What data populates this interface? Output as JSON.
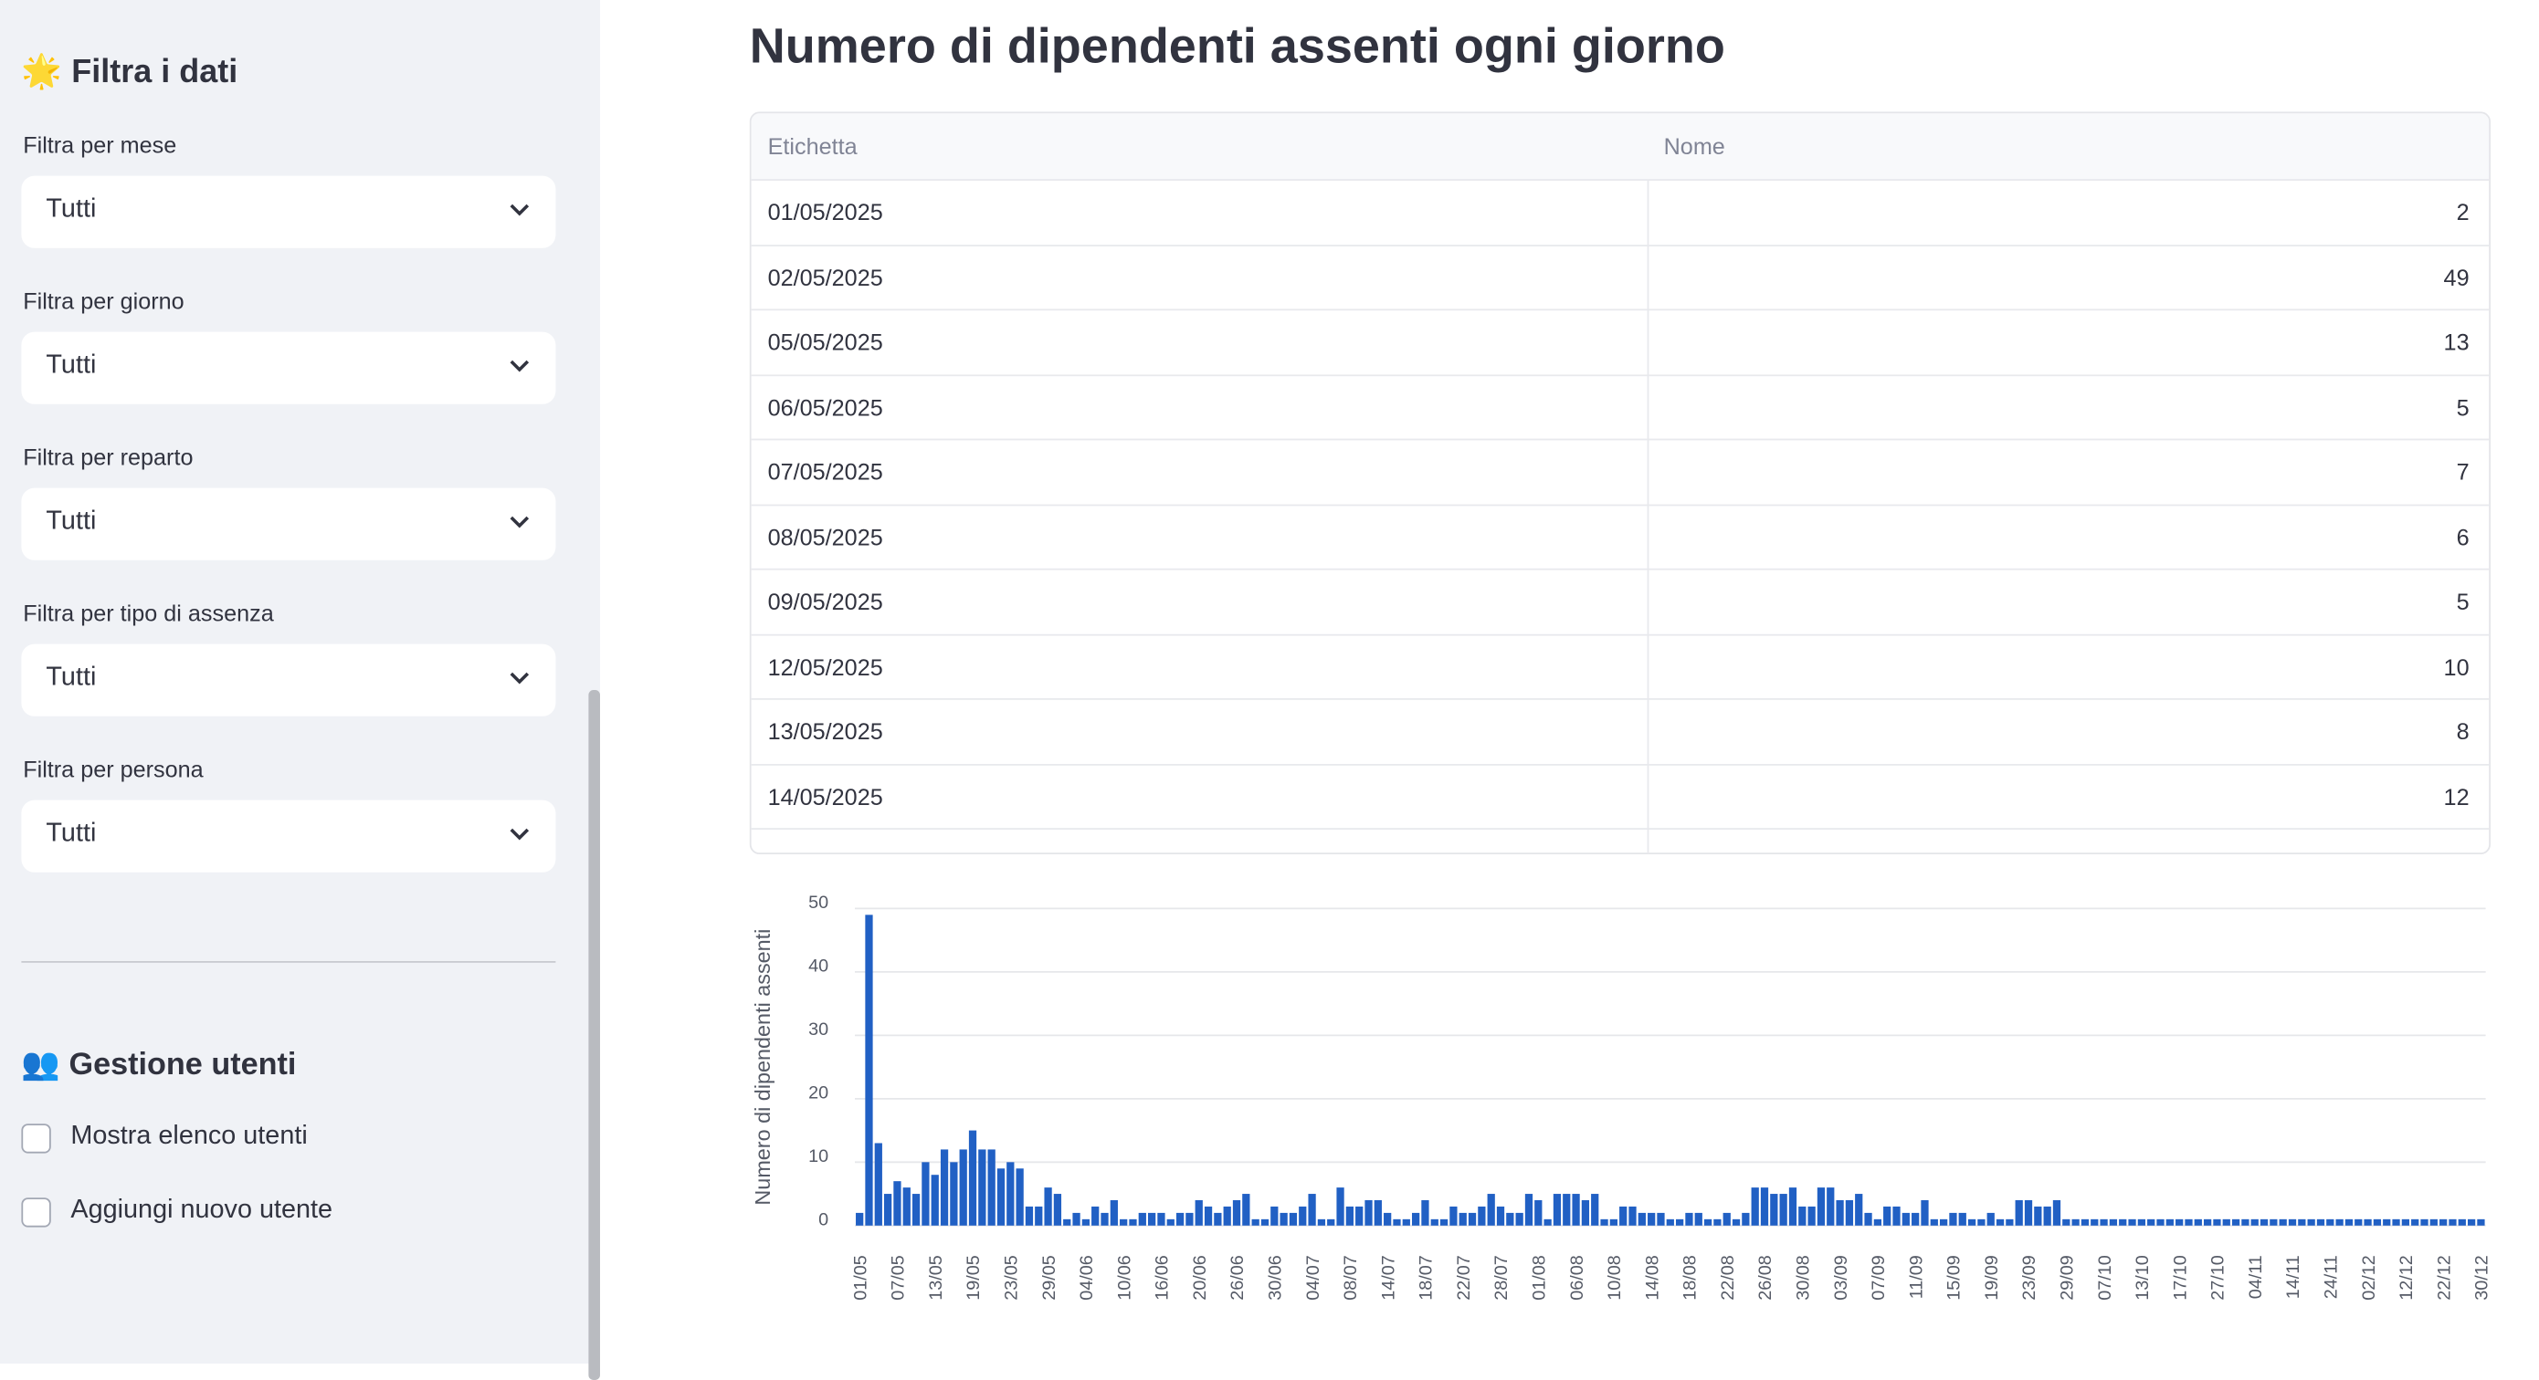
{
  "sidebar": {
    "title": "🌟 Filtra i dati",
    "filters": [
      {
        "label": "Filtra per mese",
        "value": "Tutti"
      },
      {
        "label": "Filtra per giorno",
        "value": "Tutti"
      },
      {
        "label": "Filtra per reparto",
        "value": "Tutti"
      },
      {
        "label": "Filtra per tipo di assenza",
        "value": "Tutti"
      },
      {
        "label": "Filtra per persona",
        "value": "Tutti"
      }
    ],
    "users_title": "👥 Gestione utenti",
    "checkboxes": [
      "Mostra elenco utenti",
      "Aggiungi nuovo utente"
    ]
  },
  "main": {
    "title": "Numero di dipendenti assenti ogni giorno",
    "table": {
      "columns": [
        "Etichetta",
        "Nome"
      ],
      "rows": [
        [
          "01/05/2025",
          "2"
        ],
        [
          "02/05/2025",
          "49"
        ],
        [
          "05/05/2025",
          "13"
        ],
        [
          "06/05/2025",
          "5"
        ],
        [
          "07/05/2025",
          "7"
        ],
        [
          "08/05/2025",
          "6"
        ],
        [
          "09/05/2025",
          "5"
        ],
        [
          "12/05/2025",
          "10"
        ],
        [
          "13/05/2025",
          "8"
        ],
        [
          "14/05/2025",
          "12"
        ]
      ]
    }
  },
  "chart_data": {
    "type": "bar",
    "color": "#2160c4",
    "grid": true,
    "y_label": "Numero di dipendenti assenti",
    "ylim": [
      0,
      50
    ],
    "yticks": [
      0,
      10,
      20,
      30,
      40,
      50
    ],
    "categories": [
      "01/05",
      null,
      null,
      null,
      "07/05",
      null,
      null,
      null,
      "13/05",
      null,
      null,
      null,
      "19/05",
      null,
      null,
      null,
      "23/05",
      null,
      null,
      null,
      "29/05",
      null,
      null,
      null,
      "04/06",
      null,
      null,
      null,
      "10/06",
      null,
      null,
      null,
      "16/06",
      null,
      null,
      null,
      "20/06",
      null,
      null,
      null,
      "26/06",
      null,
      null,
      null,
      "30/06",
      null,
      null,
      null,
      "04/07",
      null,
      null,
      null,
      "08/07",
      null,
      null,
      null,
      "14/07",
      null,
      null,
      null,
      "18/07",
      null,
      null,
      null,
      "22/07",
      null,
      null,
      null,
      "28/07",
      null,
      null,
      null,
      "01/08",
      null,
      null,
      null,
      "06/08",
      null,
      null,
      null,
      "10/08",
      null,
      null,
      null,
      "14/08",
      null,
      null,
      null,
      "18/08",
      null,
      null,
      null,
      "22/08",
      null,
      null,
      null,
      "26/08",
      null,
      null,
      null,
      "30/08",
      null,
      null,
      null,
      "03/09",
      null,
      null,
      null,
      "07/09",
      null,
      null,
      null,
      "11/09",
      null,
      null,
      null,
      "15/09",
      null,
      null,
      null,
      "19/09",
      null,
      null,
      null,
      "23/09",
      null,
      null,
      null,
      "29/09",
      null,
      null,
      null,
      "07/10",
      null,
      null,
      null,
      "13/10",
      null,
      null,
      null,
      "17/10",
      null,
      null,
      null,
      "27/10",
      null,
      null,
      null,
      "04/11",
      null,
      null,
      null,
      "14/11",
      null,
      null,
      null,
      "24/11",
      null,
      null,
      null,
      "02/12",
      null,
      null,
      null,
      "12/12",
      null,
      null,
      null,
      "22/12",
      null,
      null,
      null,
      "30/12"
    ],
    "values": [
      2,
      49,
      13,
      5,
      7,
      6,
      5,
      10,
      8,
      12,
      10,
      12,
      15,
      12,
      12,
      9,
      10,
      9,
      3,
      3,
      6,
      5,
      1,
      2,
      1,
      3,
      2,
      4,
      1,
      1,
      2,
      2,
      2,
      1,
      2,
      2,
      4,
      3,
      2,
      3,
      4,
      5,
      1,
      1,
      3,
      2,
      2,
      3,
      5,
      1,
      1,
      6,
      3,
      3,
      4,
      4,
      2,
      1,
      1,
      2,
      4,
      1,
      1,
      3,
      2,
      2,
      3,
      5,
      3,
      2,
      2,
      5,
      4,
      1,
      5,
      5,
      5,
      4,
      5,
      1,
      1,
      3,
      3,
      2,
      2,
      2,
      1,
      1,
      2,
      2,
      1,
      1,
      2,
      1,
      2,
      6,
      6,
      5,
      5,
      6,
      3,
      3,
      6,
      6,
      4,
      4,
      5,
      2,
      1,
      3,
      3,
      2,
      2,
      4,
      1,
      1,
      2,
      2,
      1,
      1,
      2,
      1,
      1,
      4,
      4,
      3,
      3,
      4,
      1,
      1,
      1,
      1,
      1,
      1,
      1,
      1,
      1,
      1,
      1,
      1,
      1,
      1,
      1,
      1,
      1,
      1,
      1,
      1,
      1,
      1,
      1,
      1,
      1,
      1,
      1,
      1,
      1,
      1,
      1,
      1,
      1,
      1,
      1,
      1,
      1,
      1,
      1,
      1,
      1,
      1,
      1,
      1,
      1
    ]
  }
}
